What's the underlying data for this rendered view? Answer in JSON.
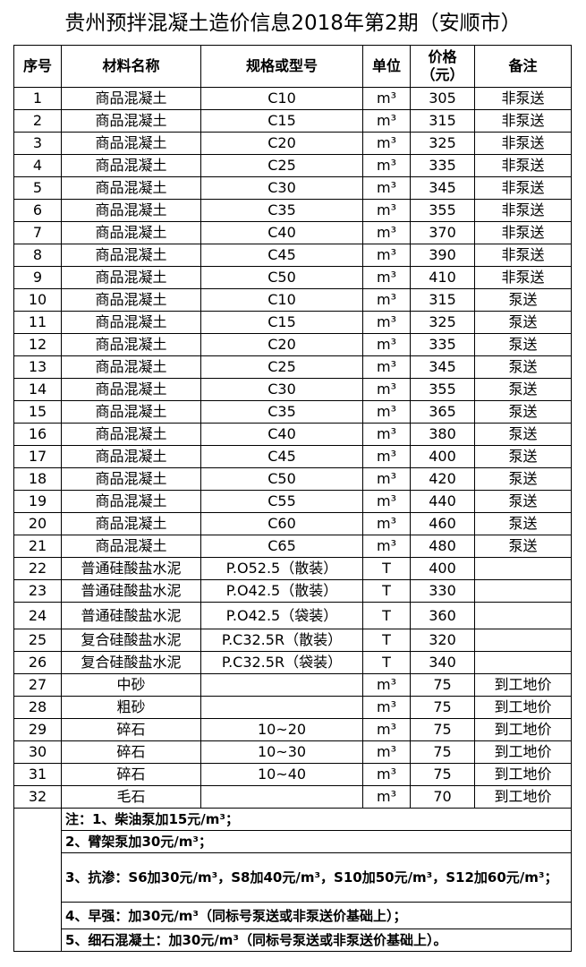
{
  "title": "贵州预拌混凝土造价信息2018年第2期（安顺市）",
  "table": {
    "headers": [
      "序号",
      "材料名称",
      "规格或型号",
      "单位",
      [
        "价格",
        "（元）"
      ],
      "备注"
    ],
    "rows": [
      {
        "no": 1,
        "name": "商品混凝土",
        "spec": "C10",
        "unit": "m³",
        "price": 305,
        "note": "非泵送"
      },
      {
        "no": 2,
        "name": "商品混凝土",
        "spec": "C15",
        "unit": "m³",
        "price": 315,
        "note": "非泵送"
      },
      {
        "no": 3,
        "name": "商品混凝土",
        "spec": "C20",
        "unit": "m³",
        "price": 325,
        "note": "非泵送"
      },
      {
        "no": 4,
        "name": "商品混凝土",
        "spec": "C25",
        "unit": "m³",
        "price": 335,
        "note": "非泵送"
      },
      {
        "no": 5,
        "name": "商品混凝土",
        "spec": "C30",
        "unit": "m³",
        "price": 345,
        "note": "非泵送"
      },
      {
        "no": 6,
        "name": "商品混凝土",
        "spec": "C35",
        "unit": "m³",
        "price": 355,
        "note": "非泵送"
      },
      {
        "no": 7,
        "name": "商品混凝土",
        "spec": "C40",
        "unit": "m³",
        "price": 370,
        "note": "非泵送"
      },
      {
        "no": 8,
        "name": "商品混凝土",
        "spec": "C45",
        "unit": "m³",
        "price": 390,
        "note": "非泵送"
      },
      {
        "no": 9,
        "name": "商品混凝土",
        "spec": "C50",
        "unit": "m³",
        "price": 410,
        "note": "非泵送"
      },
      {
        "no": 10,
        "name": "商品混凝土",
        "spec": "C10",
        "unit": "m³",
        "price": 315,
        "note": "泵送"
      },
      {
        "no": 11,
        "name": "商品混凝土",
        "spec": "C15",
        "unit": "m³",
        "price": 325,
        "note": "泵送"
      },
      {
        "no": 12,
        "name": "商品混凝土",
        "spec": "C20",
        "unit": "m³",
        "price": 335,
        "note": "泵送"
      },
      {
        "no": 13,
        "name": "商品混凝土",
        "spec": "C25",
        "unit": "m³",
        "price": 345,
        "note": "泵送"
      },
      {
        "no": 14,
        "name": "商品混凝土",
        "spec": "C30",
        "unit": "m³",
        "price": 355,
        "note": "泵送"
      },
      {
        "no": 15,
        "name": "商品混凝土",
        "spec": "C35",
        "unit": "m³",
        "price": 365,
        "note": "泵送"
      },
      {
        "no": 16,
        "name": "商品混凝土",
        "spec": "C40",
        "unit": "m³",
        "price": 380,
        "note": "泵送"
      },
      {
        "no": 17,
        "name": "商品混凝土",
        "spec": "C45",
        "unit": "m³",
        "price": 400,
        "note": "泵送"
      },
      {
        "no": 18,
        "name": "商品混凝土",
        "spec": "C50",
        "unit": "m³",
        "price": 420,
        "note": "泵送"
      },
      {
        "no": 19,
        "name": "商品混凝土",
        "spec": "C55",
        "unit": "m³",
        "price": 440,
        "note": "泵送"
      },
      {
        "no": 20,
        "name": "商品混凝土",
        "spec": "C60",
        "unit": "m³",
        "price": 460,
        "note": "泵送"
      },
      {
        "no": 21,
        "name": "商品混凝土",
        "spec": "C65",
        "unit": "m³",
        "price": 480,
        "note": "泵送"
      },
      {
        "no": 22,
        "name": "普通硅酸盐水泥",
        "spec": "P.O52.5（散装）",
        "unit": "T",
        "price": 400
      },
      {
        "no": 23,
        "name": "普通硅酸盐水泥",
        "spec": "P.O42.5（散装）",
        "unit": "T",
        "price": 330
      },
      {
        "no": 24,
        "name": "普通硅酸盐水泥",
        "spec": "P.O42.5（袋装）",
        "unit": "T",
        "price": 360
      },
      {
        "no": 25,
        "name": "复合硅酸盐水泥",
        "spec": "P.C32.5R（散装）",
        "unit": "T",
        "price": 320
      },
      {
        "no": 26,
        "name": "复合硅酸盐水泥",
        "spec": "P.C32.5R（袋装）",
        "unit": "T",
        "price": 340
      },
      {
        "no": 27,
        "name": "中砂",
        "unit": "m³",
        "price": 75,
        "note": "到工地价"
      },
      {
        "no": 28,
        "name": "粗砂",
        "unit": "m³",
        "price": 75,
        "note": "到工地价"
      },
      {
        "no": 29,
        "name": "碎石",
        "spec": "10~20",
        "unit": "m³",
        "price": 75,
        "note": "到工地价"
      },
      {
        "no": 30,
        "name": "碎石",
        "spec": "10~30",
        "unit": "m³",
        "price": 75,
        "note": "到工地价"
      },
      {
        "no": 31,
        "name": "碎石",
        "spec": "10~40",
        "unit": "m³",
        "price": 75,
        "note": "到工地价"
      },
      {
        "no": 32,
        "name": "毛石",
        "unit": "m³",
        "price": 70,
        "note": "到工地价"
      }
    ],
    "notes": [
      "注：1、柴油泵加15元/m³；",
      "2、臂架泵加30元/m³；",
      "3、抗渗：S6加30元/m³，S8加40元/m³，S10加50元/m³，S12加60元/m³；",
      "4、早强：加30元/m³（同标号泵送或非泵送价基础上）；",
      "5、细石混凝土：加30元/m³（同标号泵送或非泵送价基础上）。"
    ]
  }
}
